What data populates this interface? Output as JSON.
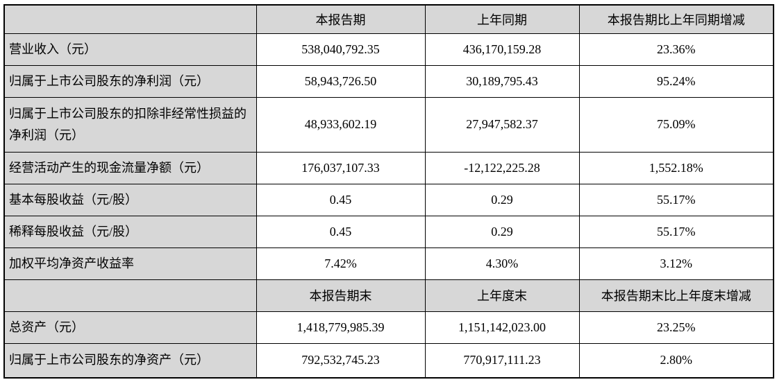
{
  "page": {
    "background": "#ffffff",
    "header_bg": "#d7d7d7",
    "border_color": "#000000",
    "text_color": "#000000"
  },
  "table": {
    "sections": [
      {
        "header": [
          "本报告期",
          "上年同期",
          "本报告期比上年同期增减"
        ],
        "rows": [
          {
            "label": "营业收入（元）",
            "current": "538,040,792.35",
            "prior": "436,170,159.28",
            "change": "23.36%"
          },
          {
            "label": "归属于上市公司股东的净利润（元）",
            "current": "58,943,726.50",
            "prior": "30,189,795.43",
            "change": "95.24%"
          },
          {
            "label": "归属于上市公司股东的扣除非经常性损益的净利润（元）",
            "current": "48,933,602.19",
            "prior": "27,947,582.37",
            "change": "75.09%"
          },
          {
            "label": "经营活动产生的现金流量净额（元）",
            "current": "176,037,107.33",
            "prior": "-12,122,225.28",
            "change": "1,552.18%"
          },
          {
            "label": "基本每股收益（元/股）",
            "current": "0.45",
            "prior": "0.29",
            "change": "55.17%"
          },
          {
            "label": "稀释每股收益（元/股）",
            "current": "0.45",
            "prior": "0.29",
            "change": "55.17%"
          },
          {
            "label": "加权平均净资产收益率",
            "current": "7.42%",
            "prior": "4.30%",
            "change": "3.12%"
          }
        ]
      },
      {
        "header": [
          "本报告期末",
          "上年度末",
          "本报告期末比上年度末增减"
        ],
        "rows": [
          {
            "label": "总资产（元）",
            "current": "1,418,779,985.39",
            "prior": "1,151,142,023.00",
            "change": "23.25%"
          },
          {
            "label": "归属于上市公司股东的净资产（元）",
            "current": "792,532,745.23",
            "prior": "770,917,111.23",
            "change": "2.80%"
          }
        ]
      }
    ]
  }
}
